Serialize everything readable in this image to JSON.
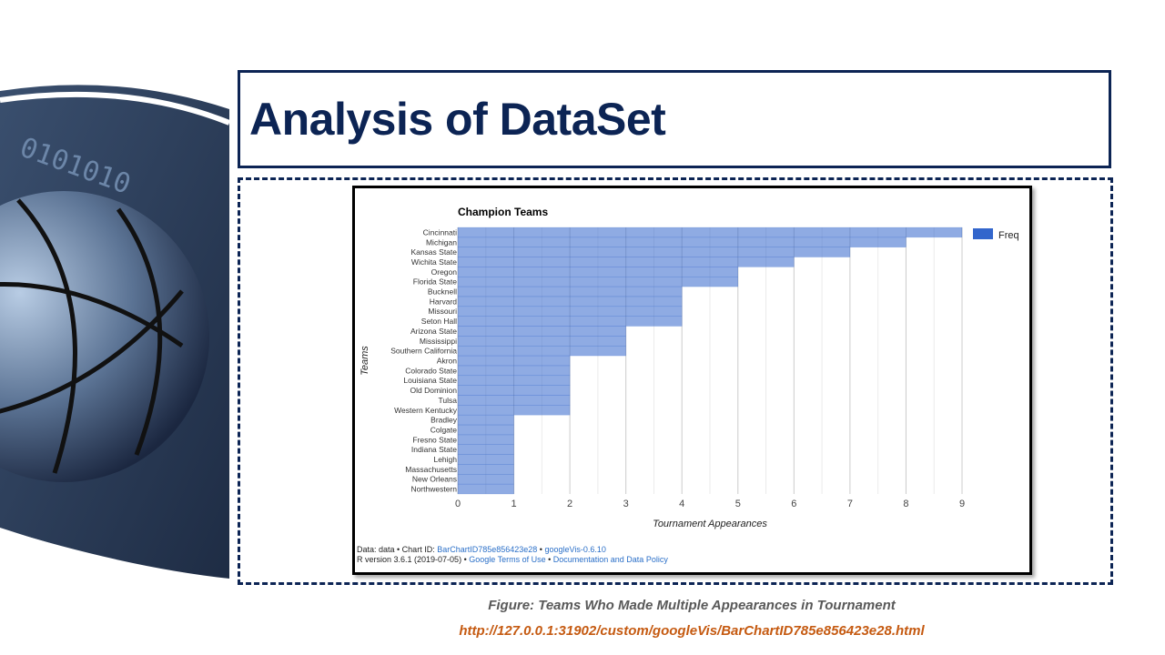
{
  "slide": {
    "title": "Analysis of DataSet",
    "caption": "Figure: Teams Who Made Multiple Appearances in Tournament",
    "caption_url": "http://127.0.0.1:31902/custom/googleVis/BarChartID785e856423e28.html"
  },
  "footer": {
    "line1_prefix": "Data: data • Chart ID: ",
    "chart_id_link": "BarChartID785e856423e28",
    "line1_sep": " • ",
    "googlevis_link": "googleVis-0.6.10",
    "line2_prefix": "R version 3.6.1 (2019-07-05) • ",
    "terms_link": "Google Terms of Use",
    "line2_sep": " • ",
    "policy_link": "Documentation and Data Policy"
  },
  "colors": {
    "bar": "#3366cc",
    "title": "#0c2454",
    "link": "#2a6fc8",
    "caption_url": "#c55a11"
  },
  "chart_data": {
    "type": "bar",
    "orientation": "horizontal",
    "title": "Champion Teams",
    "xlabel": "Tournament Appearances",
    "ylabel": "Teams",
    "xlim": [
      0,
      9
    ],
    "x_ticks": [
      0,
      1,
      2,
      3,
      4,
      5,
      6,
      7,
      8,
      9
    ],
    "grid": true,
    "legend": "right",
    "categories": [
      "Cincinnati",
      "Michigan",
      "Kansas State",
      "Wichita State",
      "Oregon",
      "Florida State",
      "Bucknell",
      "Harvard",
      "Missouri",
      "Seton Hall",
      "Arizona State",
      "Mississippi",
      "Southern California",
      "Akron",
      "Colorado State",
      "Louisiana State",
      "Old Dominion",
      "Tulsa",
      "Western Kentucky",
      "Bradley",
      "Colgate",
      "Fresno State",
      "Indiana State",
      "Lehigh",
      "Massachusetts",
      "New Orleans",
      "Northwestern"
    ],
    "series": [
      {
        "name": "Freq",
        "values": [
          9,
          8,
          7,
          6,
          5,
          5,
          4,
          4,
          4,
          4,
          3,
          3,
          3,
          2,
          2,
          2,
          2,
          2,
          2,
          1,
          1,
          1,
          1,
          1,
          1,
          1,
          1
        ]
      }
    ]
  }
}
